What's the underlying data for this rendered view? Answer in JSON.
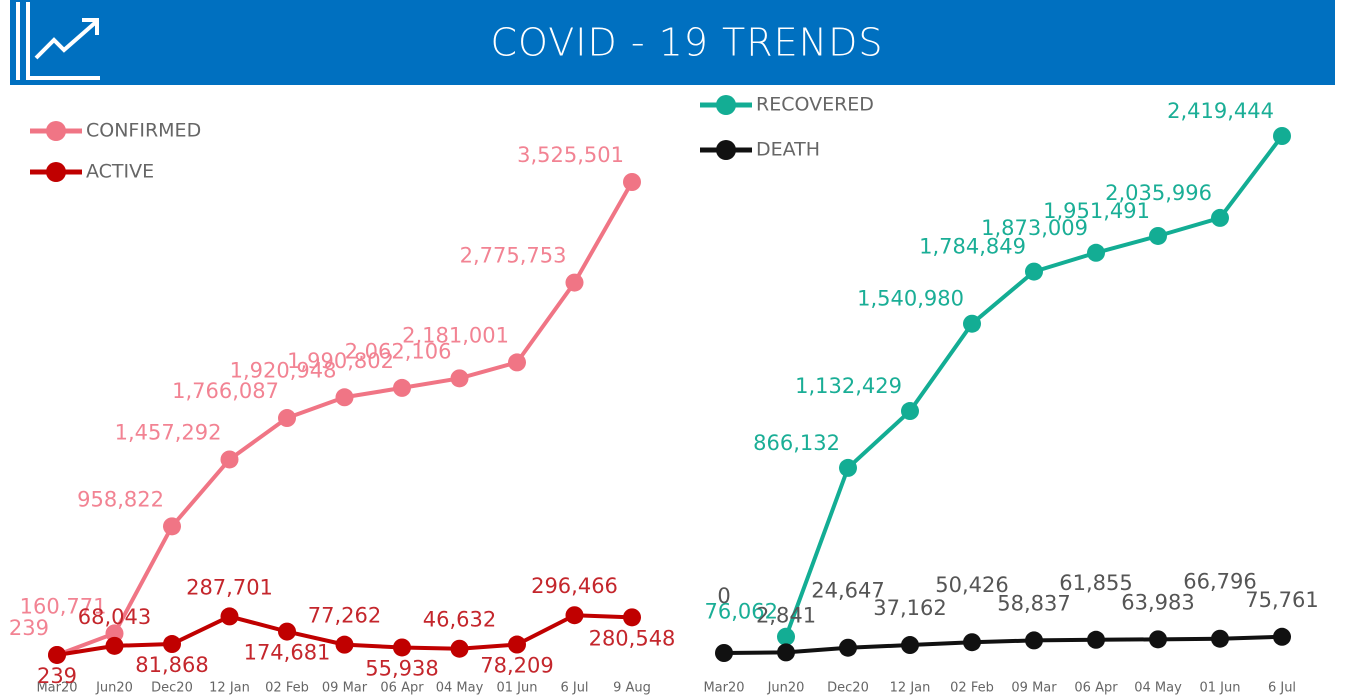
{
  "header": {
    "title": "COVID - 19 TRENDS"
  },
  "chart_data": [
    {
      "type": "line",
      "categories": [
        "Mar20",
        "Jun20",
        "Dec20",
        "12 Jan",
        "02 Feb",
        "09 Mar",
        "06 Apr",
        "04 May",
        "01 Jun",
        "6 Jul",
        "9 Aug"
      ],
      "series": [
        {
          "name": "CONFIRMED",
          "color": "#f07585",
          "values": [
            239,
            160771,
            958822,
            1457292,
            1766087,
            1920948,
            1990802,
            2062106,
            2181001,
            2775753,
            3525501
          ],
          "value_labels": [
            "239",
            "160,771",
            "958,822",
            "1,457,292",
            "1,766,087",
            "1,920,948",
            "1,990,802",
            "2,062,106",
            "2,181,001",
            "2,775,753",
            "3,525,501"
          ]
        },
        {
          "name": "ACTIVE",
          "color": "#c00000",
          "values": [
            239,
            68043,
            81868,
            287701,
            174681,
            77262,
            55938,
            46632,
            78209,
            296466,
            280548
          ],
          "value_labels": [
            "239",
            "68,043",
            "81,868",
            "287,701",
            "174,681",
            "77,262",
            "55,938",
            "46,632",
            "78,209",
            "296,466",
            "280,548"
          ]
        }
      ]
    },
    {
      "type": "line",
      "categories": [
        "Mar20",
        "Jun20",
        "Dec20",
        "12 Jan",
        "02 Feb",
        "09 Mar",
        "06 Apr",
        "04 May",
        "01 Jun",
        "6 Jul"
      ],
      "series": [
        {
          "name": "RECOVERED",
          "color": "#13ad94",
          "values": [
            null,
            76062,
            866132,
            1132429,
            1540980,
            1784849,
            1873009,
            1951491,
            2035996,
            2419444
          ],
          "value_labels": [
            null,
            "76,062",
            "866,132",
            "1,132,429",
            "1,540,980",
            "1,784,849",
            "1,873,009",
            "1,951,491",
            "2,035,996",
            "2,419,444"
          ]
        },
        {
          "name": "DEATH",
          "color": "#111111",
          "values": [
            0,
            2841,
            24647,
            37162,
            50426,
            58837,
            61855,
            63983,
            66796,
            75761
          ],
          "value_labels": [
            "0",
            "2,841",
            "24,647",
            "37,162",
            "50,426",
            "58,837",
            "61,855",
            "63,983",
            "66,796",
            "75,761"
          ]
        }
      ]
    }
  ]
}
